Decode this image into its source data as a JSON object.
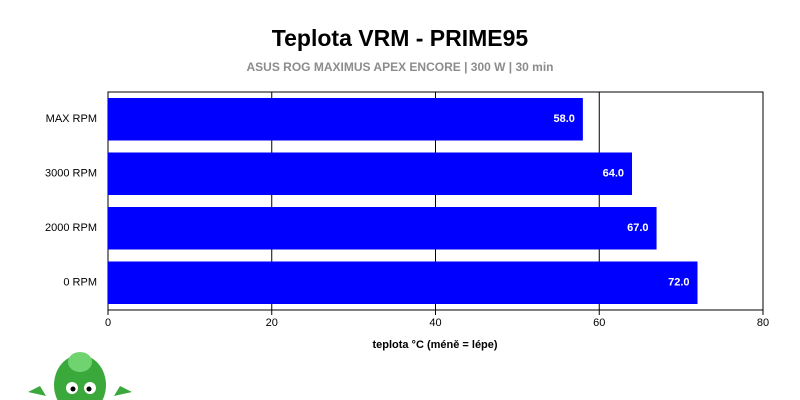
{
  "chart_data": {
    "type": "bar",
    "orientation": "horizontal",
    "title": "Teplota VRM - PRIME95",
    "subtitle": "ASUS ROG MAXIMUS APEX ENCORE | 300 W | 30 min",
    "x_label": "teplota °C (méně = lépe)",
    "categories": [
      "MAX RPM",
      "3000 RPM",
      "2000 RPM",
      "0 RPM"
    ],
    "values": [
      58,
      64,
      67,
      72
    ],
    "value_labels": [
      "58.0",
      "64.0",
      "67.0",
      "72.0"
    ],
    "color": "#0000ff",
    "xlim": [
      0,
      80
    ],
    "xticks": [
      0,
      20,
      40,
      60,
      80
    ],
    "grid": true
  }
}
